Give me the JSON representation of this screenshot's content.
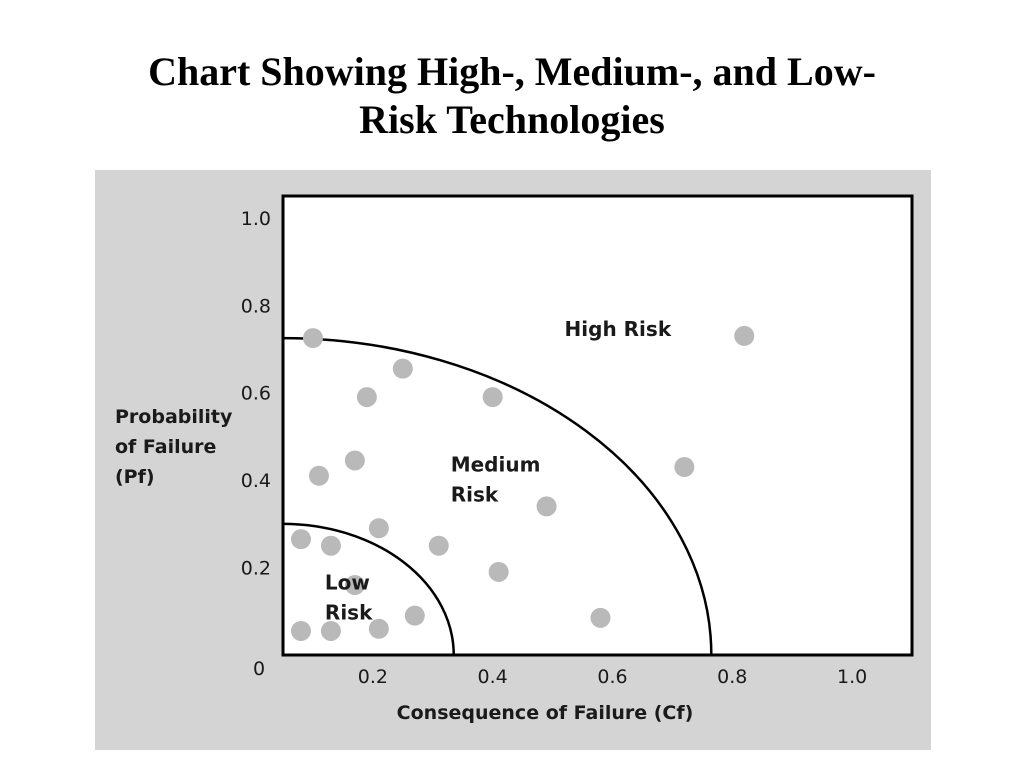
{
  "title": {
    "line1": "Chart Showing High-, Medium-, and Low-",
    "line2": "Risk Technologies"
  },
  "chart_data": {
    "type": "scatter",
    "title": "Chart Showing High-, Medium-, and Low-Risk Technologies",
    "xlabel": "Consequence of Failure (Cf)",
    "ylabel_lines": [
      "Probability",
      "of Failure",
      "(Pf)"
    ],
    "xlim": [
      0.05,
      1.1
    ],
    "ylim": [
      0,
      1.05
    ],
    "x_ticks": [
      {
        "value": 0.2,
        "label": "0.2"
      },
      {
        "value": 0.4,
        "label": "0.4"
      },
      {
        "value": 0.6,
        "label": "0.6"
      },
      {
        "value": 0.8,
        "label": "0.8"
      },
      {
        "value": 1.0,
        "label": "1.0"
      }
    ],
    "y_ticks": [
      {
        "value": 0.2,
        "label": "0.2"
      },
      {
        "value": 0.4,
        "label": "0.4"
      },
      {
        "value": 0.6,
        "label": "0.6"
      },
      {
        "value": 0.8,
        "label": "0.8"
      },
      {
        "value": 1.0,
        "label": "1.0"
      }
    ],
    "origin_label": "0",
    "grid": false,
    "boundaries": [
      {
        "name": "low-medium",
        "radius_x": 0.285,
        "radius_y": 0.3
      },
      {
        "name": "medium-high",
        "radius_x": 0.715,
        "radius_y": 0.725
      }
    ],
    "regions": [
      {
        "lines": [
          "Low",
          "Risk"
        ],
        "x": 0.12,
        "y": 0.15
      },
      {
        "lines": [
          "Medium",
          "Risk"
        ],
        "x": 0.33,
        "y": 0.42
      },
      {
        "lines": [
          "High Risk"
        ],
        "x": 0.52,
        "y": 0.73
      }
    ],
    "points": [
      {
        "x": 0.1,
        "y": 0.725
      },
      {
        "x": 0.25,
        "y": 0.655
      },
      {
        "x": 0.19,
        "y": 0.59
      },
      {
        "x": 0.4,
        "y": 0.59
      },
      {
        "x": 0.82,
        "y": 0.73
      },
      {
        "x": 0.17,
        "y": 0.445
      },
      {
        "x": 0.11,
        "y": 0.41
      },
      {
        "x": 0.72,
        "y": 0.43
      },
      {
        "x": 0.49,
        "y": 0.34
      },
      {
        "x": 0.21,
        "y": 0.29
      },
      {
        "x": 0.08,
        "y": 0.265
      },
      {
        "x": 0.13,
        "y": 0.25
      },
      {
        "x": 0.31,
        "y": 0.25
      },
      {
        "x": 0.41,
        "y": 0.19
      },
      {
        "x": 0.17,
        "y": 0.16
      },
      {
        "x": 0.27,
        "y": 0.09
      },
      {
        "x": 0.58,
        "y": 0.085
      },
      {
        "x": 0.08,
        "y": 0.055
      },
      {
        "x": 0.13,
        "y": 0.055
      },
      {
        "x": 0.21,
        "y": 0.06
      }
    ]
  },
  "colors": {
    "panel": "#d4d4d4",
    "plot_bg": "#ffffff",
    "point": "#b9b9b9",
    "line": "#000000",
    "text": "#1a1a1a"
  }
}
